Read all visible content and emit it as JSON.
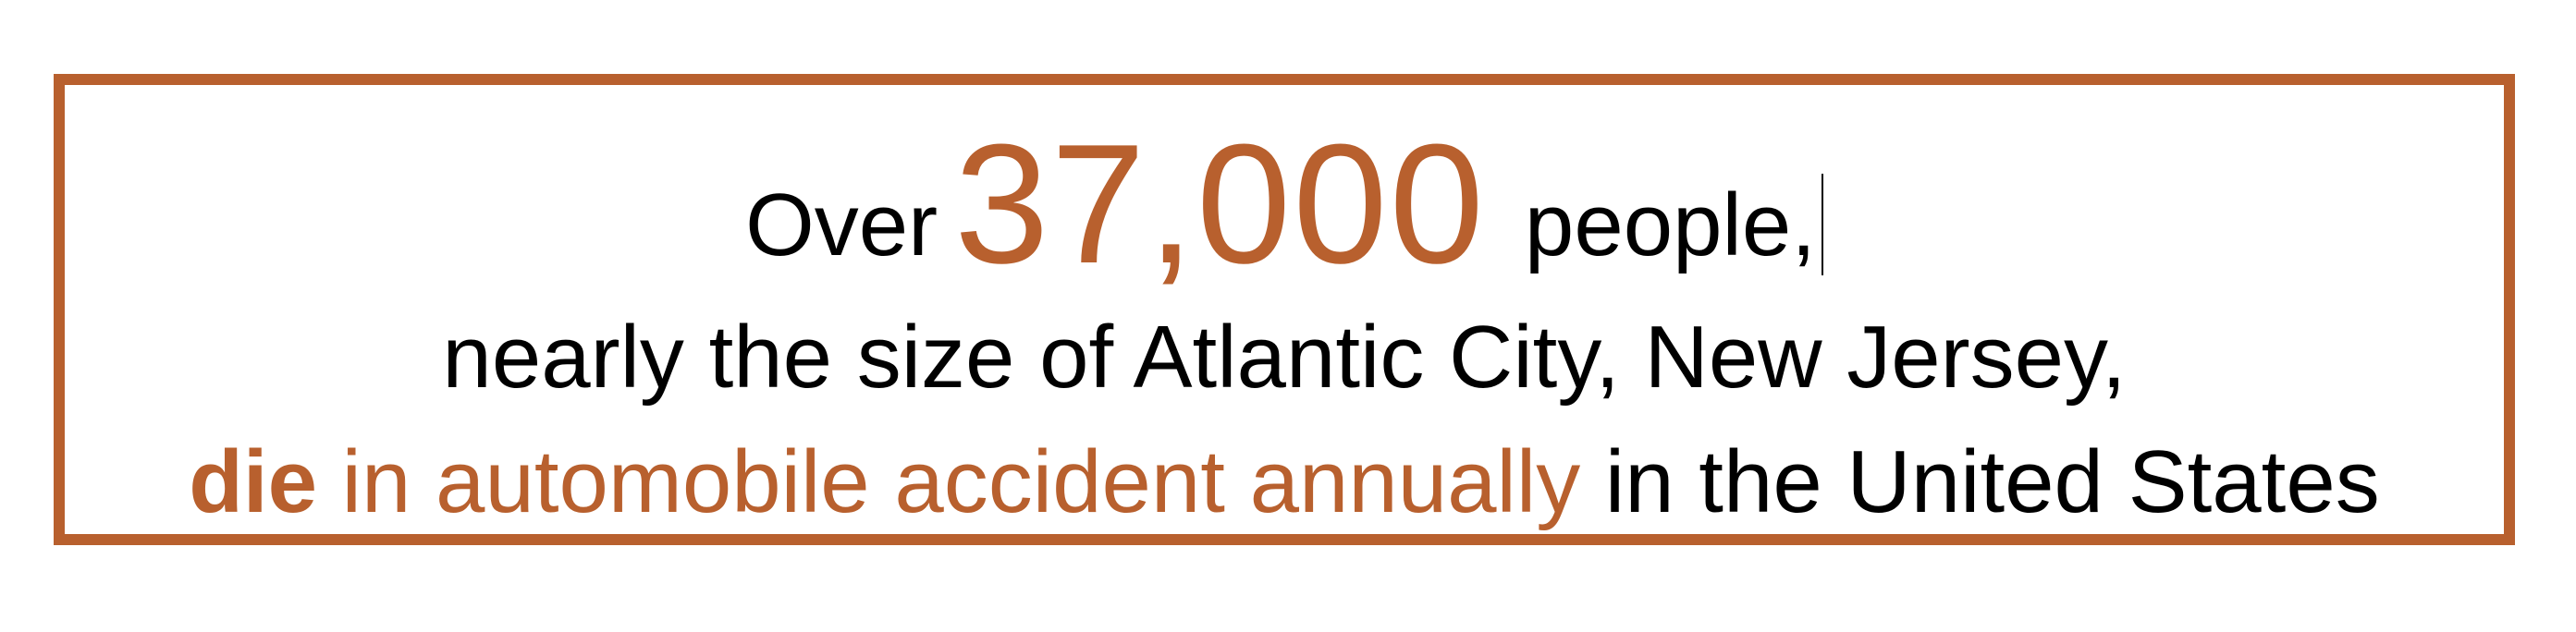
{
  "colors": {
    "accent": "#b8602e",
    "text": "#000000",
    "background": "#ffffff"
  },
  "line1": {
    "prefix": "Over",
    "number": "37,000",
    "suffix": "people,"
  },
  "line2": {
    "text": "nearly the size of Atlantic City, New Jersey,"
  },
  "line3": {
    "bold_word": "die",
    "accent_phrase": "in automobile accident annually",
    "suffix": "in the United States"
  }
}
